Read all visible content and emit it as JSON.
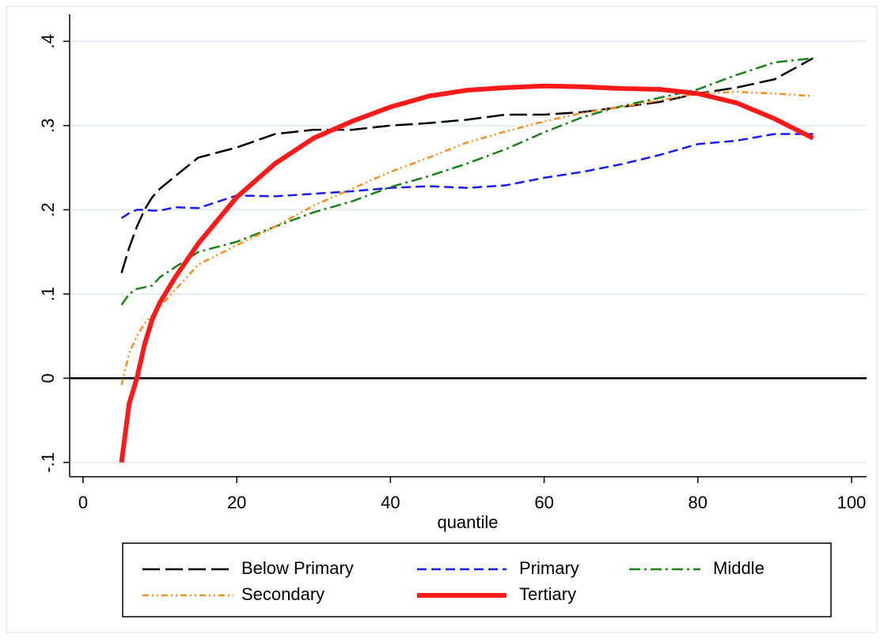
{
  "chart_data": {
    "type": "line",
    "x": [
      5,
      6,
      7,
      8,
      9,
      10,
      12,
      15,
      20,
      25,
      30,
      35,
      40,
      45,
      50,
      55,
      60,
      65,
      70,
      75,
      80,
      85,
      90,
      95
    ],
    "series": [
      {
        "name": "Below Primary",
        "color": "#000000",
        "style": "longdash",
        "values": [
          0.125,
          0.155,
          0.18,
          0.2,
          0.215,
          0.225,
          0.24,
          0.262,
          0.274,
          0.29,
          0.295,
          0.295,
          0.3,
          0.303,
          0.307,
          0.313,
          0.313,
          0.316,
          0.322,
          0.328,
          0.338,
          0.345,
          0.355,
          0.38
        ]
      },
      {
        "name": "Primary",
        "color": "#1a1aff",
        "style": "dash",
        "values": [
          0.19,
          0.196,
          0.2,
          0.2,
          0.199,
          0.199,
          0.203,
          0.202,
          0.217,
          0.216,
          0.219,
          0.222,
          0.226,
          0.228,
          0.226,
          0.229,
          0.238,
          0.245,
          0.254,
          0.265,
          0.278,
          0.282,
          0.29,
          0.29
        ]
      },
      {
        "name": "Middle",
        "color": "#1a801a",
        "style": "dashdot",
        "values": [
          0.087,
          0.1,
          0.106,
          0.108,
          0.11,
          0.12,
          0.132,
          0.15,
          0.162,
          0.18,
          0.197,
          0.21,
          0.227,
          0.24,
          0.255,
          0.272,
          0.292,
          0.31,
          0.323,
          0.333,
          0.343,
          0.36,
          0.375,
          0.38
        ]
      },
      {
        "name": "Secondary",
        "color": "#ff8c1a",
        "style": "dashdotdot",
        "values": [
          -0.008,
          0.03,
          0.05,
          0.065,
          0.075,
          0.085,
          0.105,
          0.135,
          0.158,
          0.18,
          0.205,
          0.225,
          0.245,
          0.262,
          0.28,
          0.293,
          0.305,
          0.315,
          0.322,
          0.33,
          0.338,
          0.34,
          0.338,
          0.335
        ]
      },
      {
        "name": "Tertiary",
        "color": "#ff1a1a",
        "style": "thick",
        "values": [
          -0.1,
          -0.03,
          0.0,
          0.04,
          0.07,
          0.09,
          0.12,
          0.16,
          0.215,
          0.255,
          0.285,
          0.305,
          0.322,
          0.335,
          0.342,
          0.345,
          0.347,
          0.346,
          0.344,
          0.343,
          0.338,
          0.327,
          0.308,
          0.285
        ]
      }
    ],
    "xlabel": "quantile",
    "xlim": [
      -1.75,
      101.96
    ],
    "xticks": [
      0,
      20,
      40,
      60,
      80,
      100
    ],
    "ylim": [
      -0.117,
      0.435
    ],
    "yticks": [
      {
        "value": -0.1,
        "label": "-.1"
      },
      0,
      {
        "value": 0.1,
        "label": ".1"
      },
      {
        "value": 0.2,
        "label": ".2"
      },
      {
        "value": 0.3,
        "label": ".3"
      },
      {
        "value": 0.4,
        "label": ".4"
      }
    ],
    "hline": 0,
    "grid": true,
    "legend": "bottom"
  }
}
